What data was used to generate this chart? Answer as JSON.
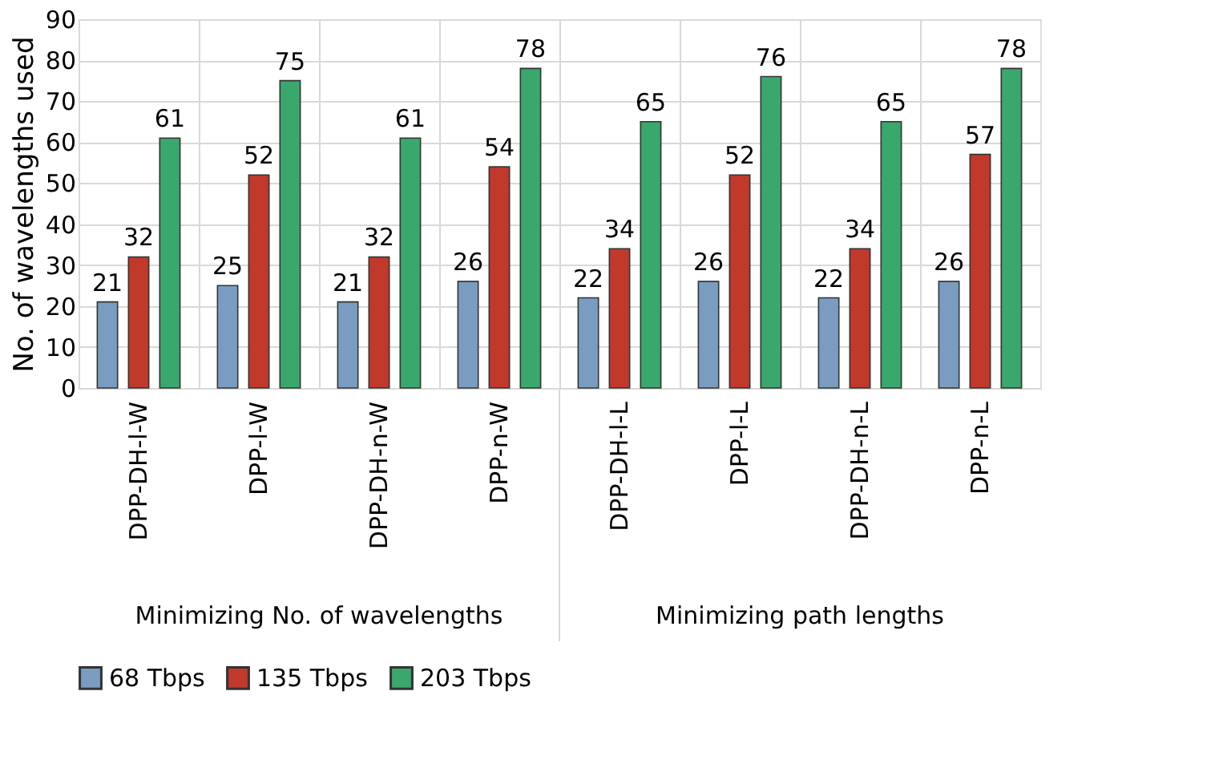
{
  "chart_data": {
    "type": "bar",
    "ylabel": "No. of wavelengths used",
    "categories": [
      "DPP-DH-l-W",
      "DPP-l-W",
      "DPP-DH-n-W",
      "DPP-n-W",
      "DPP-DH-l-L",
      "DPP-l-L",
      "DPP-DH-n-L",
      "DPP-n-L"
    ],
    "series": [
      {
        "name": "68 Tbps",
        "color": "#7a9cc0",
        "values": [
          21,
          25,
          21,
          26,
          22,
          26,
          22,
          26
        ]
      },
      {
        "name": "135 Tbps",
        "color": "#c0392b",
        "values": [
          32,
          52,
          32,
          54,
          34,
          52,
          34,
          57
        ]
      },
      {
        "name": "203 Tbps",
        "color": "#3aa76d",
        "values": [
          61,
          75,
          61,
          78,
          65,
          76,
          65,
          78
        ]
      }
    ],
    "ylim": [
      0,
      90
    ],
    "yticks": [
      0,
      10,
      20,
      30,
      40,
      50,
      60,
      70,
      80,
      90
    ],
    "grid": true,
    "data_labels": true,
    "legend": "bottom",
    "annotations": [
      "Minimizing No. of wavelengths",
      "Minimizing path lengths"
    ]
  }
}
